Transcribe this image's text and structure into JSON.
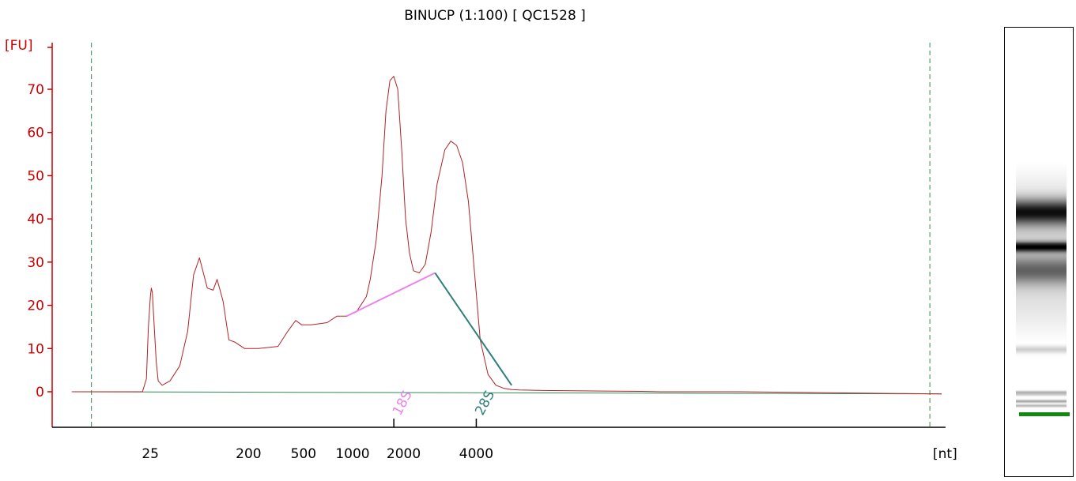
{
  "chart_data": {
    "type": "line",
    "title": "BINUCP (1:100)  [ QC1528 ]",
    "ylabel": "[FU]",
    "xlabel": "[nt]",
    "y_ticks": [
      0,
      10,
      20,
      30,
      40,
      50,
      60,
      70
    ],
    "ylim": [
      -8,
      80
    ],
    "x_ticks": [
      "25",
      "200",
      "500",
      "1000",
      "2000",
      "4000"
    ],
    "x_tick_positions_s": [
      22.0,
      27.0,
      29.8,
      32.3,
      34.9,
      38.6
    ],
    "xlim_s": [
      17.0,
      62.5
    ],
    "cursor_lines_s": [
      19.0,
      61.7
    ],
    "colors": {
      "axis_y": "#cc0000",
      "trace": "#b22222",
      "baseline": "#2e8b57",
      "cursor": "#2e8b57",
      "peak_18s": "#ee82ee",
      "peak_28s": "#2f7f7f",
      "gel_marker": "#128a12",
      "gel_dot": "#c8c8f4"
    },
    "series": [
      {
        "x": [
          18.0,
          21.6,
          21.8,
          21.9,
          22.0,
          22.05,
          22.1,
          22.2,
          22.3,
          22.4,
          22.6,
          22.8,
          23.0,
          23.5,
          23.9,
          24.2,
          24.5,
          24.9,
          25.2,
          25.4,
          25.7,
          26.0,
          26.3,
          26.8,
          27.5,
          28.5,
          29.0,
          29.4,
          29.7,
          30.2,
          31.0,
          31.5,
          32.0,
          32.5,
          33.0,
          33.2,
          33.5,
          33.8,
          34.0,
          34.2,
          34.4,
          34.6,
          34.8,
          35.0,
          35.2,
          35.4,
          35.7,
          36.0,
          36.3,
          36.6,
          37.0,
          37.3,
          37.6,
          37.9,
          38.2,
          38.5,
          38.8,
          39.2,
          39.6,
          40.0,
          40.4,
          40.8,
          42.0,
          44.0,
          47.0,
          48.0,
          52.0,
          56.0,
          60.0,
          62.3
        ],
        "y": [
          0,
          0,
          3,
          15,
          22,
          24,
          23,
          15,
          7,
          2.5,
          1.5,
          2,
          2.5,
          6,
          14,
          27,
          31,
          24,
          23.5,
          26,
          21,
          12,
          11.5,
          10,
          10,
          10.5,
          14,
          16.5,
          15.5,
          15.5,
          16,
          17.5,
          17.5,
          18.5,
          22,
          26,
          35,
          50,
          65,
          72,
          73,
          70,
          56,
          40,
          32,
          28,
          27.5,
          29.5,
          37,
          48,
          56,
          58,
          57,
          53,
          44,
          28,
          12,
          4,
          1.5,
          0.8,
          0.5,
          0.4,
          0.3,
          0.2,
          0.1,
          0,
          0,
          -0.2,
          -0.4,
          -0.5
        ]
      },
      {
        "x": [
          18.0,
          62.3
        ],
        "y": [
          0,
          -0.5
        ]
      }
    ],
    "annotations": [
      {
        "label": "18S",
        "x_s": [
          32.0,
          36.5
        ],
        "y": [
          17.5,
          27.5
        ],
        "label_x_s": 34.4
      },
      {
        "label": "28S",
        "x_s": [
          36.5,
          40.4
        ],
        "y": [
          27.5,
          1.5
        ],
        "label_x_s": 38.6
      }
    ]
  },
  "gel": {
    "bands": [
      {
        "pos": 0.41,
        "width": 0.055,
        "darkness": 0.82
      },
      {
        "pos": 0.487,
        "width": 0.02,
        "darkness": 0.97
      },
      {
        "pos": 0.54,
        "width": 0.06,
        "darkness": 0.45
      },
      {
        "pos": 0.715,
        "width": 0.015,
        "darkness": 0.2
      },
      {
        "pos": 0.812,
        "width": 0.007,
        "darkness": 0.45
      },
      {
        "pos": 0.83,
        "width": 0.006,
        "darkness": 0.38
      },
      {
        "pos": 0.84,
        "width": 0.004,
        "darkness": 0.3
      }
    ],
    "haze_start": 0.3,
    "haze_end": 0.82,
    "haze_level": 0.18
  }
}
